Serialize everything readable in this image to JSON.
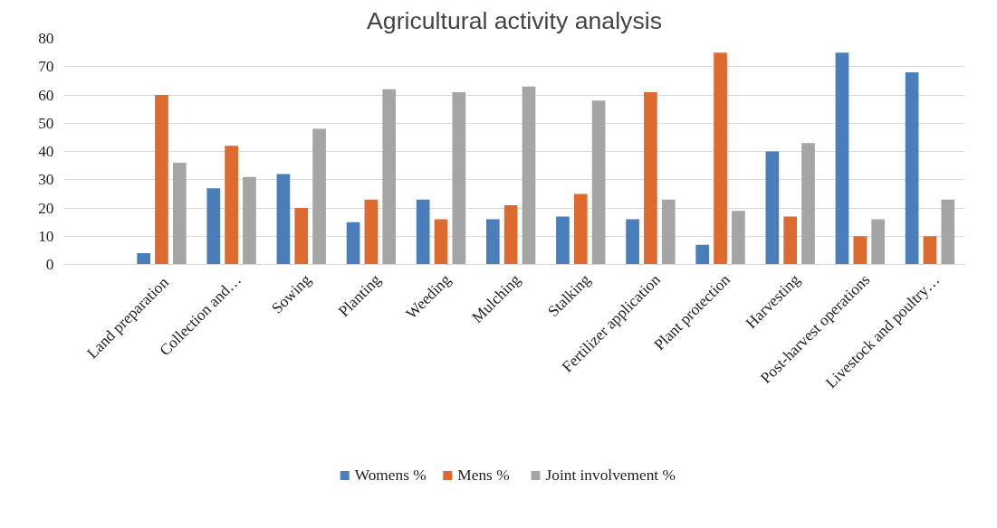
{
  "chart_data": {
    "type": "bar",
    "title": "Agricultural activity analysis",
    "categories": [
      "Land  preparation",
      "Collection and…",
      "Sowing",
      "Planting",
      "Weeding",
      "Mulching",
      "Stalking",
      "Fertilizer application",
      "Plant protection",
      "Harvesting",
      "Post-harvest operations",
      "Livestock and poultry…"
    ],
    "series": [
      {
        "name": "Womens %",
        "color": "#4a7ebb",
        "values": [
          4,
          27,
          32,
          15,
          23,
          16,
          17,
          16,
          7,
          40,
          75,
          68
        ]
      },
      {
        "name": "Mens %",
        "color": "#dd6b30",
        "values": [
          60,
          42,
          20,
          23,
          16,
          21,
          25,
          61,
          75,
          17,
          10,
          10
        ]
      },
      {
        "name": "Joint involvement %",
        "color": "#a5a5a5",
        "values": [
          36,
          31,
          48,
          62,
          61,
          63,
          58,
          23,
          19,
          43,
          16,
          23
        ]
      }
    ],
    "ylim": [
      0,
      80
    ],
    "yticks": [
      0,
      10,
      20,
      30,
      40,
      50,
      60,
      70,
      80
    ],
    "grid": "y",
    "legend": "bottom"
  }
}
